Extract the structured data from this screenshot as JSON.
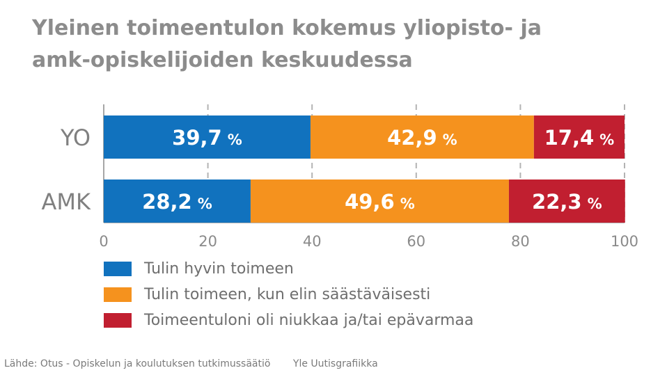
{
  "title_lines": [
    "Yleinen toimeentulon kokemus yliopisto- ja",
    "amk-opiskelijoiden keskuudessa"
  ],
  "chart_data": {
    "type": "bar",
    "orientation": "horizontal",
    "stacked": true,
    "categories": [
      "YO",
      "AMK"
    ],
    "series": [
      {
        "name": "Tulin hyvin toimeen",
        "values": [
          39.7,
          28.2
        ],
        "labels": [
          "39,7",
          "28,2"
        ],
        "color": "#1172be"
      },
      {
        "name": "Tulin toimeen, kun elin säästäväisesti",
        "values": [
          42.9,
          49.6
        ],
        "labels": [
          "42,9",
          "49,6"
        ],
        "color": "#f5921e"
      },
      {
        "name": "Toimeentuloni oli niukkaa ja/tai epävarmaa",
        "values": [
          17.4,
          22.3
        ],
        "labels": [
          "17,4",
          "22,3"
        ],
        "color": "#c11f30"
      }
    ],
    "value_unit": "%",
    "xlim": [
      0,
      100
    ],
    "xticks": [
      0,
      20,
      40,
      60,
      80,
      100
    ],
    "grid": "vertical dashed",
    "legend_position": "bottom-left"
  },
  "footer": {
    "source": "Lähde: Otus - Opiskelun ja koulutuksen tutkimussäätiö",
    "credit": "Yle Uutisgrafiikka"
  }
}
